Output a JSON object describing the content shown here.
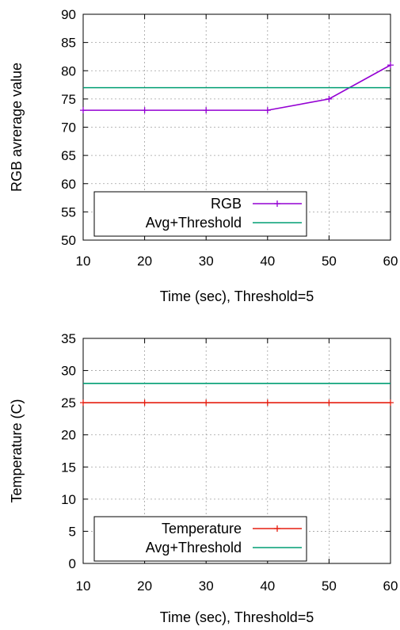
{
  "chart_data": [
    {
      "type": "line",
      "xlabel": "Time (sec), Threshold=5",
      "ylabel": "RGB avrerage value",
      "xlim": [
        10,
        60
      ],
      "ylim": [
        50,
        90
      ],
      "xticks": [
        10,
        20,
        30,
        40,
        50,
        60
      ],
      "yticks": [
        50,
        55,
        60,
        65,
        70,
        75,
        80,
        85,
        90
      ],
      "grid": true,
      "legend_position": "bottom-left",
      "x": [
        10,
        20,
        30,
        40,
        50,
        60
      ],
      "series": [
        {
          "name": "RGB",
          "values": [
            73,
            73,
            73,
            73,
            75,
            81
          ],
          "color": "#9400d3",
          "marker": "plus"
        },
        {
          "name": "Avg+Threshold",
          "values": [
            77,
            77,
            77,
            77,
            77,
            77
          ],
          "color": "#009e73",
          "marker": "none"
        }
      ]
    },
    {
      "type": "line",
      "xlabel": "Time (sec), Threshold=5",
      "ylabel": "Temperature (C)",
      "xlim": [
        10,
        60
      ],
      "ylim": [
        0,
        35
      ],
      "xticks": [
        10,
        20,
        30,
        40,
        50,
        60
      ],
      "yticks": [
        0,
        5,
        10,
        15,
        20,
        25,
        30,
        35
      ],
      "grid": true,
      "legend_position": "bottom-left",
      "x": [
        10,
        20,
        30,
        40,
        50,
        60
      ],
      "series": [
        {
          "name": "Temperature",
          "values": [
            25,
            25,
            25,
            25,
            25,
            25
          ],
          "color": "#e51e10",
          "marker": "plus"
        },
        {
          "name": "Avg+Threshold",
          "values": [
            28,
            28,
            28,
            28,
            28,
            28
          ],
          "color": "#009e73",
          "marker": "none"
        }
      ]
    }
  ]
}
